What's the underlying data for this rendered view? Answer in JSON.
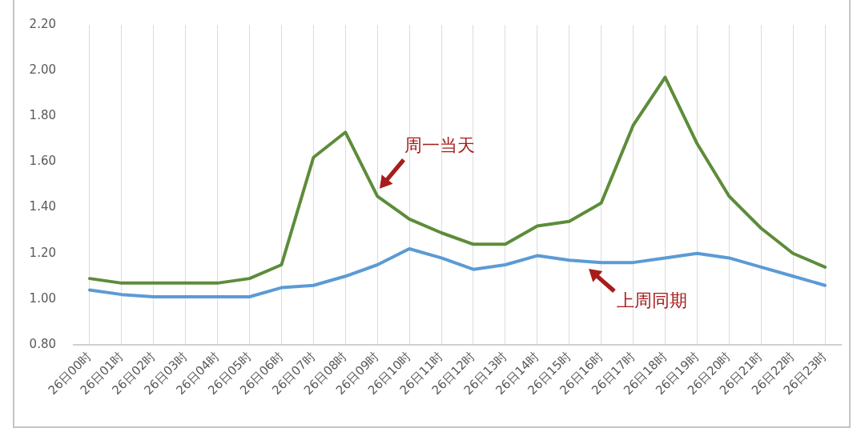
{
  "chart_data": {
    "type": "line",
    "categories": [
      "26日00时",
      "26日01时",
      "26日02时",
      "26日03时",
      "26日04时",
      "26日05时",
      "26日06时",
      "26日07时",
      "26日08时",
      "26日09时",
      "26日10时",
      "26日11时",
      "26日12时",
      "26日13时",
      "26日14时",
      "26日15时",
      "26日16时",
      "26日17时",
      "26日18时",
      "26日19时",
      "26日20时",
      "26日21时",
      "26日22时",
      "26日23时"
    ],
    "series": [
      {
        "name": "周一当天",
        "color": "#5d8c3a",
        "values": [
          1.09,
          1.07,
          1.07,
          1.07,
          1.07,
          1.09,
          1.15,
          1.62,
          1.73,
          1.45,
          1.35,
          1.29,
          1.24,
          1.24,
          1.32,
          1.34,
          1.42,
          1.76,
          1.97,
          1.68,
          1.45,
          1.31,
          1.2,
          1.14
        ]
      },
      {
        "name": "上周同期",
        "color": "#5b9bd5",
        "values": [
          1.04,
          1.02,
          1.01,
          1.01,
          1.01,
          1.01,
          1.05,
          1.06,
          1.1,
          1.15,
          1.22,
          1.18,
          1.13,
          1.15,
          1.19,
          1.17,
          1.16,
          1.16,
          1.18,
          1.2,
          1.18,
          1.14,
          1.1,
          1.06
        ]
      }
    ],
    "ylim": [
      0.8,
      2.2
    ],
    "yticks": [
      {
        "value": 0.8,
        "label": "0.80"
      },
      {
        "value": 1.0,
        "label": "1.00"
      },
      {
        "value": 1.2,
        "label": "1.20"
      },
      {
        "value": 1.4,
        "label": "1.40"
      },
      {
        "value": 1.6,
        "label": "1.60"
      },
      {
        "value": 1.8,
        "label": "1.80"
      },
      {
        "value": 2.0,
        "label": "2.00"
      },
      {
        "value": 2.2,
        "label": "2.20"
      }
    ],
    "grid": "x",
    "legend": false,
    "marker": "none",
    "line_style": "solid"
  }
}
